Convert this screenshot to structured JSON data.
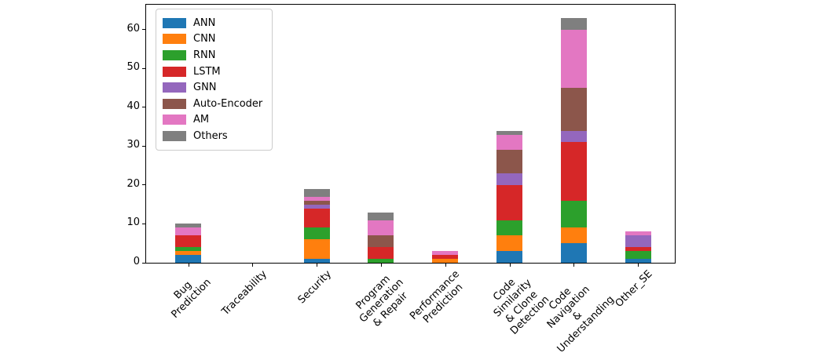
{
  "chart_data": {
    "type": "bar",
    "stacked": true,
    "title": "",
    "xlabel": "",
    "ylabel": "",
    "categories": [
      "Bug\nPrediction",
      "Traceability",
      "Security",
      "Program\nGeneration\n& Repair",
      "Performance\nPrediction",
      "Code\nSimilarity\n& Clone\nDetection",
      "Code\nNavigation\n& Understanding",
      "Other_SE"
    ],
    "series": [
      {
        "name": "ANN",
        "color": "#1f77b4",
        "values": [
          2,
          0,
          1,
          0,
          0,
          3,
          5,
          1
        ]
      },
      {
        "name": "CNN",
        "color": "#ff7f0e",
        "values": [
          1,
          0,
          5,
          0,
          1,
          4,
          4,
          0
        ]
      },
      {
        "name": "RNN",
        "color": "#2ca02c",
        "values": [
          1,
          0,
          3,
          1,
          0,
          4,
          7,
          2
        ]
      },
      {
        "name": "LSTM",
        "color": "#d62728",
        "values": [
          3,
          0,
          5,
          3,
          1,
          9,
          15,
          1
        ]
      },
      {
        "name": "GNN",
        "color": "#9467bd",
        "values": [
          0,
          0,
          1,
          0,
          0,
          3,
          3,
          3
        ]
      },
      {
        "name": "Auto-Encoder",
        "color": "#8c564b",
        "values": [
          0,
          0,
          1,
          3,
          0,
          6,
          11,
          0
        ]
      },
      {
        "name": "AM",
        "color": "#e377c2",
        "values": [
          2,
          0,
          1,
          4,
          1,
          4,
          15,
          1
        ]
      },
      {
        "name": "Others",
        "color": "#7f7f7f",
        "values": [
          1,
          0,
          2,
          2,
          0,
          1,
          3,
          0
        ]
      }
    ],
    "category_totals": [
      10,
      0,
      19,
      13,
      3,
      34,
      63,
      8
    ],
    "yticks": [
      0,
      10,
      20,
      30,
      40,
      50,
      60
    ],
    "ylim": [
      0,
      66.4
    ],
    "grid": false,
    "legend_position": "upper-left",
    "axis_color": "#000000",
    "background_color": "#ffffff"
  }
}
